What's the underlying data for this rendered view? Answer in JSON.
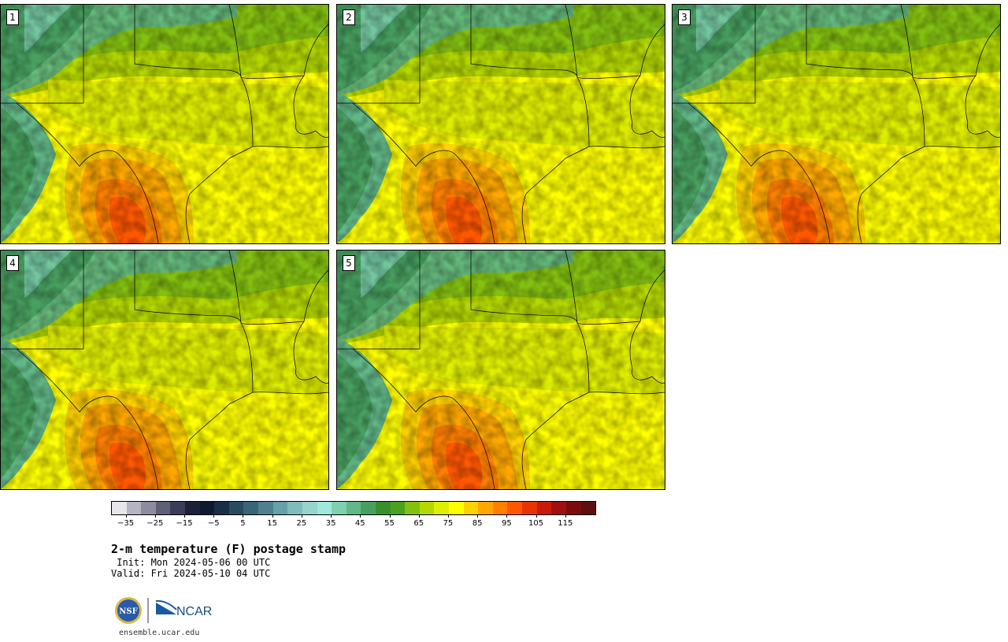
{
  "stamps": [
    {
      "label": "1"
    },
    {
      "label": "2"
    },
    {
      "label": "3"
    },
    {
      "label": "4"
    },
    {
      "label": "5"
    }
  ],
  "colorbar": {
    "colors": [
      "#e6e6ea",
      "#b4b4c4",
      "#8c8ca0",
      "#5e6078",
      "#3a3c5a",
      "#1c2038",
      "#0e1a30",
      "#1a2e48",
      "#2a4a60",
      "#3a6478",
      "#4e8090",
      "#68a0a8",
      "#80bcbc",
      "#96d4cc",
      "#a0e8dc",
      "#7ed0b0",
      "#62b888",
      "#48a060",
      "#38902c",
      "#4ca020",
      "#84c010",
      "#b4d800",
      "#e0ef00",
      "#ffff00",
      "#ffd200",
      "#ffa800",
      "#ff8000",
      "#ff5800",
      "#e83400",
      "#c81c0a",
      "#a01010",
      "#7a0c0c",
      "#5c1010"
    ],
    "tick_labels": [
      "−35",
      "−25",
      "−15",
      "−5",
      "5",
      "15",
      "25",
      "35",
      "45",
      "55",
      "65",
      "75",
      "85",
      "95",
      "105",
      "115"
    ],
    "tick_values": [
      -35,
      -25,
      -15,
      -5,
      5,
      15,
      25,
      35,
      45,
      55,
      65,
      75,
      85,
      95,
      105,
      115
    ],
    "min": -40,
    "max": 125
  },
  "title": "2-m temperature (F) postage stamp",
  "init": " Init: Mon 2024-05-06 00 UTC",
  "valid": "Valid: Fri 2024-05-10 04 UTC",
  "logo": {
    "nsf_text": "NSF",
    "ncar_text": "NCAR"
  },
  "url": "ensemble.ucar.edu"
}
